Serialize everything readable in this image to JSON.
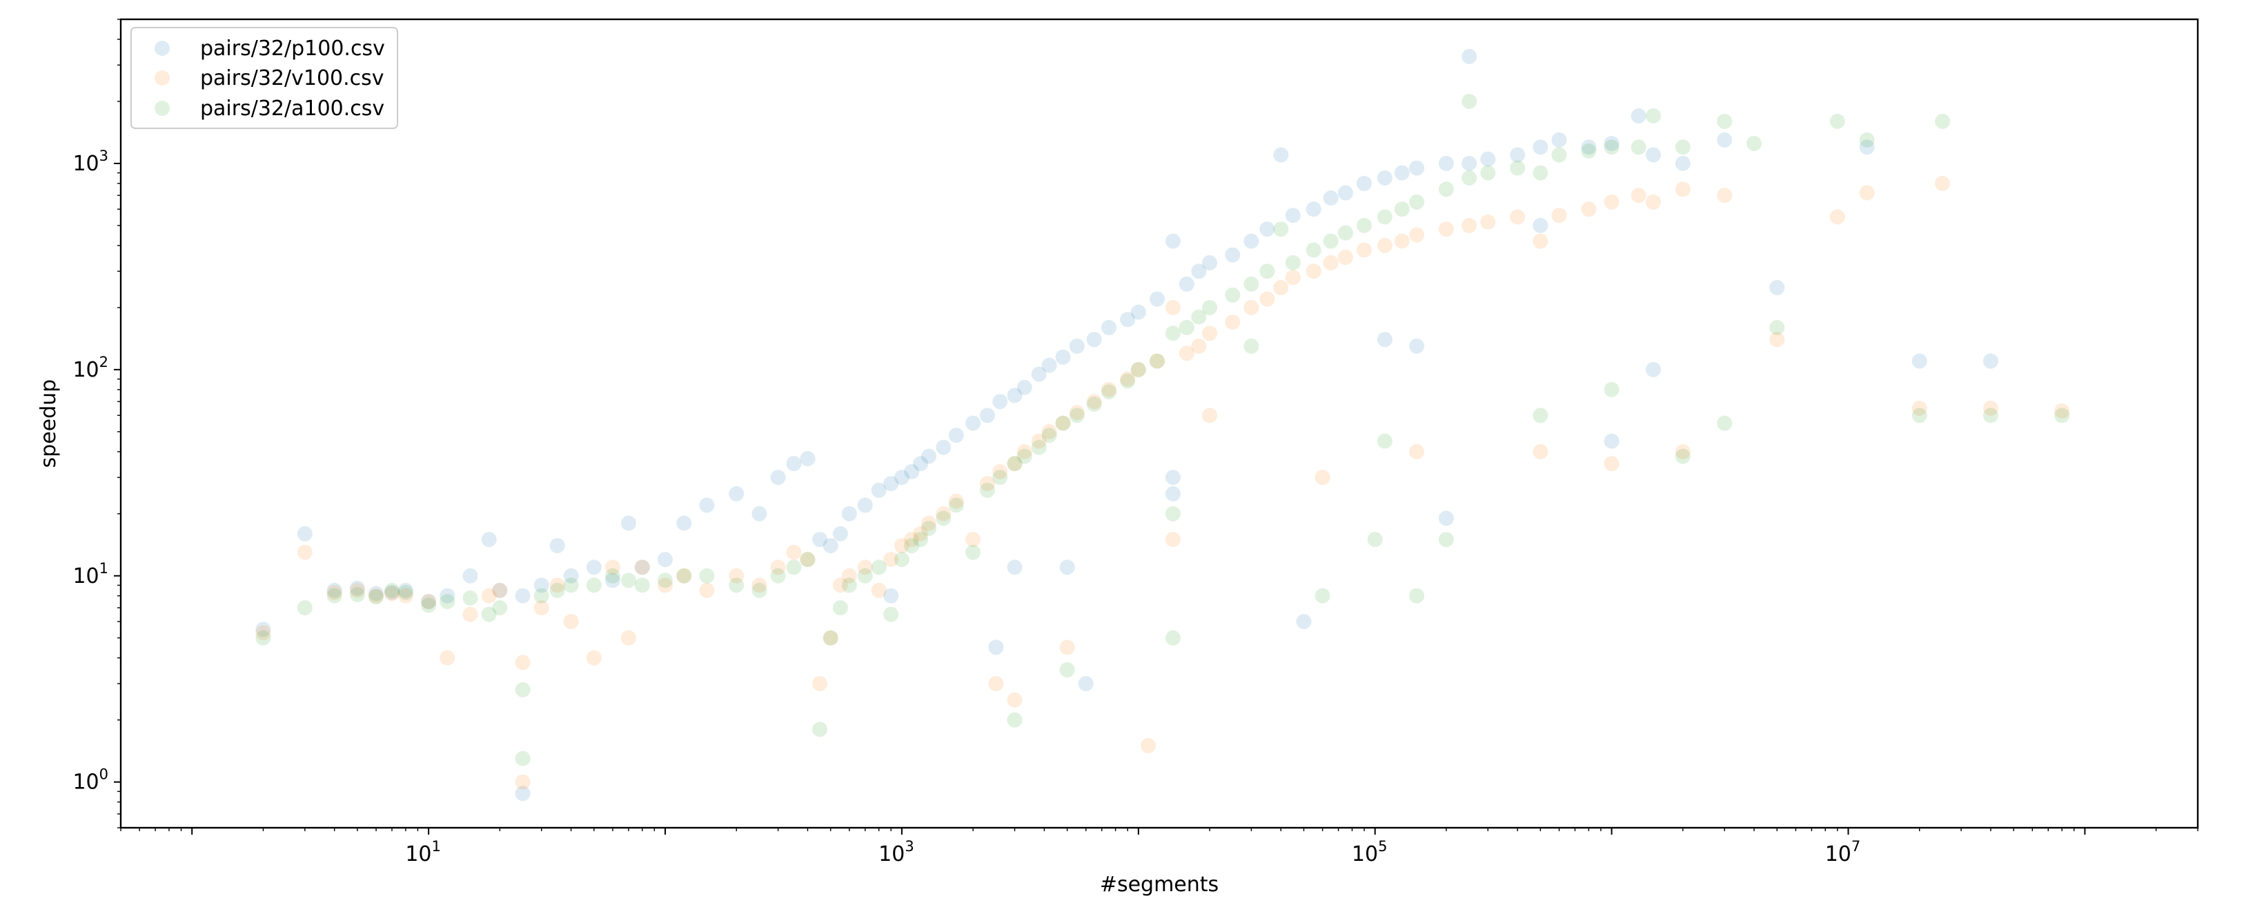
{
  "chart_data": {
    "type": "scatter",
    "xlabel": "#segments",
    "ylabel": "speedup",
    "xscale": "log",
    "yscale": "log",
    "xlim": [
      0.5,
      300000000
    ],
    "ylim": [
      0.6,
      5000
    ],
    "xticks": [
      10,
      1000,
      100000,
      10000000
    ],
    "yticks": [
      1,
      10,
      100,
      1000
    ],
    "xtick_labels": [
      {
        "base": "10",
        "exp": "1"
      },
      {
        "base": "10",
        "exp": "3"
      },
      {
        "base": "10",
        "exp": "5"
      },
      {
        "base": "10",
        "exp": "7"
      }
    ],
    "ytick_labels": [
      {
        "base": "10",
        "exp": "0"
      },
      {
        "base": "10",
        "exp": "1"
      },
      {
        "base": "10",
        "exp": "2"
      },
      {
        "base": "10",
        "exp": "3"
      }
    ],
    "grid": false,
    "legend_position": "upper-left",
    "series": [
      {
        "name": "pairs/32/p100.csv",
        "color": "#1f77b4",
        "points": [
          [
            2,
            5.5
          ],
          [
            3,
            16
          ],
          [
            4,
            8.5
          ],
          [
            5,
            8.7
          ],
          [
            6,
            8.2
          ],
          [
            7,
            8.3
          ],
          [
            8,
            8.5
          ],
          [
            10,
            7.5
          ],
          [
            12,
            8
          ],
          [
            15,
            10
          ],
          [
            18,
            15
          ],
          [
            20,
            8.5
          ],
          [
            25,
            0.88
          ],
          [
            25,
            8
          ],
          [
            30,
            9
          ],
          [
            35,
            14
          ],
          [
            40,
            10
          ],
          [
            50,
            11
          ],
          [
            60,
            9.5
          ],
          [
            70,
            18
          ],
          [
            80,
            11
          ],
          [
            100,
            12
          ],
          [
            120,
            18
          ],
          [
            150,
            22
          ],
          [
            200,
            25
          ],
          [
            250,
            20
          ],
          [
            300,
            30
          ],
          [
            350,
            35
          ],
          [
            400,
            37
          ],
          [
            450,
            15
          ],
          [
            500,
            14
          ],
          [
            550,
            16
          ],
          [
            600,
            20
          ],
          [
            700,
            22
          ],
          [
            800,
            26
          ],
          [
            900,
            28
          ],
          [
            1000,
            30
          ],
          [
            1100,
            32
          ],
          [
            1200,
            35
          ],
          [
            1300,
            38
          ],
          [
            1500,
            42
          ],
          [
            1700,
            48
          ],
          [
            2000,
            55
          ],
          [
            2300,
            60
          ],
          [
            2600,
            70
          ],
          [
            3000,
            75
          ],
          [
            3300,
            82
          ],
          [
            3800,
            95
          ],
          [
            4200,
            105
          ],
          [
            4800,
            115
          ],
          [
            5500,
            130
          ],
          [
            6500,
            140
          ],
          [
            7500,
            160
          ],
          [
            9000,
            175
          ],
          [
            10000,
            190
          ],
          [
            12000,
            220
          ],
          [
            14000,
            420
          ],
          [
            16000,
            260
          ],
          [
            18000,
            300
          ],
          [
            20000,
            330
          ],
          [
            25000,
            360
          ],
          [
            30000,
            420
          ],
          [
            35000,
            480
          ],
          [
            40000,
            1100
          ],
          [
            45000,
            560
          ],
          [
            55000,
            600
          ],
          [
            65000,
            680
          ],
          [
            75000,
            720
          ],
          [
            90000,
            800
          ],
          [
            110000,
            850
          ],
          [
            130000,
            900
          ],
          [
            150000,
            950
          ],
          [
            200000,
            1000
          ],
          [
            250000,
            3300
          ],
          [
            250000,
            1000
          ],
          [
            300000,
            1050
          ],
          [
            400000,
            1100
          ],
          [
            500000,
            1200
          ],
          [
            600000,
            1300
          ],
          [
            800000,
            1200
          ],
          [
            1000000,
            1250
          ],
          [
            1300000,
            1700
          ],
          [
            1500000,
            1100
          ],
          [
            2000000,
            1000
          ],
          [
            3000000,
            1300
          ],
          [
            5000000,
            250
          ],
          [
            12000000,
            1200
          ],
          [
            20000000,
            110
          ],
          [
            40000000,
            110
          ],
          [
            14000,
            30
          ],
          [
            14000,
            25
          ],
          [
            3000,
            11
          ],
          [
            5000,
            11
          ],
          [
            2500,
            4.5
          ],
          [
            6000,
            3
          ],
          [
            900,
            8
          ],
          [
            110000,
            140
          ],
          [
            150000,
            130
          ],
          [
            500000,
            500
          ],
          [
            1500000,
            100
          ],
          [
            200000,
            19
          ],
          [
            1000000,
            45
          ],
          [
            50000,
            6
          ]
        ]
      },
      {
        "name": "pairs/32/v100.csv",
        "color": "#ff7f0e",
        "points": [
          [
            2,
            5.3
          ],
          [
            3,
            13
          ],
          [
            4,
            8.3
          ],
          [
            5,
            8.5
          ],
          [
            6,
            8
          ],
          [
            7,
            8.2
          ],
          [
            8,
            8
          ],
          [
            10,
            7.5
          ],
          [
            12,
            4
          ],
          [
            15,
            6.5
          ],
          [
            18,
            8
          ],
          [
            20,
            8.5
          ],
          [
            25,
            1
          ],
          [
            25,
            3.8
          ],
          [
            30,
            7
          ],
          [
            35,
            9
          ],
          [
            40,
            6
          ],
          [
            50,
            4
          ],
          [
            60,
            11
          ],
          [
            70,
            5
          ],
          [
            80,
            11
          ],
          [
            100,
            9
          ],
          [
            120,
            10
          ],
          [
            150,
            8.5
          ],
          [
            200,
            10
          ],
          [
            250,
            9
          ],
          [
            300,
            11
          ],
          [
            350,
            13
          ],
          [
            400,
            12
          ],
          [
            450,
            3
          ],
          [
            500,
            5
          ],
          [
            550,
            9
          ],
          [
            600,
            10
          ],
          [
            700,
            11
          ],
          [
            800,
            8.5
          ],
          [
            900,
            12
          ],
          [
            1000,
            14
          ],
          [
            1100,
            15
          ],
          [
            1200,
            16
          ],
          [
            1300,
            18
          ],
          [
            1500,
            20
          ],
          [
            1700,
            23
          ],
          [
            2000,
            15
          ],
          [
            2300,
            28
          ],
          [
            2600,
            32
          ],
          [
            3000,
            35
          ],
          [
            3300,
            40
          ],
          [
            3800,
            45
          ],
          [
            4200,
            50
          ],
          [
            4800,
            55
          ],
          [
            5500,
            62
          ],
          [
            6500,
            70
          ],
          [
            7500,
            80
          ],
          [
            9000,
            90
          ],
          [
            10000,
            100
          ],
          [
            11000,
            1.5
          ],
          [
            12000,
            110
          ],
          [
            14000,
            200
          ],
          [
            14000,
            15
          ],
          [
            16000,
            120
          ],
          [
            18000,
            130
          ],
          [
            20000,
            150
          ],
          [
            25000,
            170
          ],
          [
            30000,
            200
          ],
          [
            35000,
            220
          ],
          [
            40000,
            250
          ],
          [
            45000,
            280
          ],
          [
            55000,
            300
          ],
          [
            65000,
            330
          ],
          [
            75000,
            350
          ],
          [
            90000,
            380
          ],
          [
            110000,
            400
          ],
          [
            130000,
            420
          ],
          [
            150000,
            450
          ],
          [
            200000,
            480
          ],
          [
            250000,
            500
          ],
          [
            300000,
            520
          ],
          [
            400000,
            550
          ],
          [
            500000,
            420
          ],
          [
            600000,
            560
          ],
          [
            800000,
            600
          ],
          [
            1000000,
            650
          ],
          [
            1300000,
            700
          ],
          [
            1500000,
            650
          ],
          [
            2000000,
            750
          ],
          [
            3000000,
            700
          ],
          [
            5000000,
            140
          ],
          [
            9000000,
            550
          ],
          [
            12000000,
            720
          ],
          [
            25000000,
            800
          ],
          [
            20000000,
            65
          ],
          [
            40000000,
            65
          ],
          [
            80000000,
            63
          ],
          [
            2500,
            3
          ],
          [
            5000,
            4.5
          ],
          [
            3000,
            2.5
          ],
          [
            500000,
            40
          ],
          [
            1000000,
            35
          ],
          [
            2000000,
            40
          ],
          [
            20000,
            60
          ],
          [
            60000,
            30
          ],
          [
            150000,
            40
          ]
        ]
      },
      {
        "name": "pairs/32/a100.csv",
        "color": "#2ca02c",
        "points": [
          [
            2,
            5
          ],
          [
            3,
            7
          ],
          [
            4,
            8
          ],
          [
            5,
            8.1
          ],
          [
            6,
            7.9
          ],
          [
            7,
            8.5
          ],
          [
            8,
            8.3
          ],
          [
            10,
            7.2
          ],
          [
            12,
            7.5
          ],
          [
            15,
            7.8
          ],
          [
            18,
            6.5
          ],
          [
            20,
            7
          ],
          [
            25,
            1.3
          ],
          [
            25,
            2.8
          ],
          [
            30,
            8
          ],
          [
            35,
            8.5
          ],
          [
            40,
            9
          ],
          [
            50,
            9
          ],
          [
            60,
            10
          ],
          [
            70,
            9.5
          ],
          [
            80,
            9
          ],
          [
            100,
            9.5
          ],
          [
            120,
            10
          ],
          [
            150,
            10
          ],
          [
            200,
            9
          ],
          [
            250,
            8.5
          ],
          [
            300,
            10
          ],
          [
            350,
            11
          ],
          [
            400,
            12
          ],
          [
            450,
            1.8
          ],
          [
            500,
            5
          ],
          [
            550,
            7
          ],
          [
            600,
            9
          ],
          [
            700,
            10
          ],
          [
            800,
            11
          ],
          [
            900,
            6.5
          ],
          [
            1000,
            12
          ],
          [
            1100,
            14
          ],
          [
            1200,
            15
          ],
          [
            1300,
            17
          ],
          [
            1500,
            19
          ],
          [
            1700,
            22
          ],
          [
            2000,
            13
          ],
          [
            2300,
            26
          ],
          [
            2600,
            30
          ],
          [
            3000,
            35
          ],
          [
            3300,
            38
          ],
          [
            3800,
            42
          ],
          [
            4200,
            48
          ],
          [
            4800,
            55
          ],
          [
            5500,
            60
          ],
          [
            6500,
            68
          ],
          [
            7500,
            78
          ],
          [
            9000,
            88
          ],
          [
            10000,
            100
          ],
          [
            12000,
            110
          ],
          [
            14000,
            20
          ],
          [
            14000,
            150
          ],
          [
            16000,
            160
          ],
          [
            18000,
            180
          ],
          [
            20000,
            200
          ],
          [
            25000,
            230
          ],
          [
            30000,
            260
          ],
          [
            30000,
            130
          ],
          [
            35000,
            300
          ],
          [
            40000,
            480
          ],
          [
            45000,
            330
          ],
          [
            55000,
            380
          ],
          [
            65000,
            420
          ],
          [
            75000,
            460
          ],
          [
            90000,
            500
          ],
          [
            110000,
            550
          ],
          [
            130000,
            600
          ],
          [
            150000,
            650
          ],
          [
            200000,
            750
          ],
          [
            250000,
            2000
          ],
          [
            250000,
            850
          ],
          [
            300000,
            900
          ],
          [
            400000,
            950
          ],
          [
            500000,
            900
          ],
          [
            600000,
            1100
          ],
          [
            800000,
            1150
          ],
          [
            1000000,
            1200
          ],
          [
            1300000,
            1200
          ],
          [
            1500000,
            1700
          ],
          [
            2000000,
            1200
          ],
          [
            3000000,
            1600
          ],
          [
            4000000,
            1250
          ],
          [
            5000000,
            160
          ],
          [
            9000000,
            1600
          ],
          [
            12000000,
            1300
          ],
          [
            25000000,
            1600
          ],
          [
            20000000,
            60
          ],
          [
            40000000,
            60
          ],
          [
            80000000,
            60
          ],
          [
            3000,
            2
          ],
          [
            5000,
            3.5
          ],
          [
            14000,
            5
          ],
          [
            100000,
            15
          ],
          [
            150000,
            8
          ],
          [
            110000,
            45
          ],
          [
            500000,
            60
          ],
          [
            1000000,
            80
          ],
          [
            2000000,
            38
          ],
          [
            3000000,
            55
          ],
          [
            200000,
            15
          ],
          [
            60000,
            8
          ]
        ]
      }
    ]
  }
}
